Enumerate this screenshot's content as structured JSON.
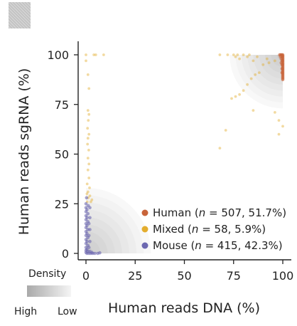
{
  "chart_data": {
    "type": "scatter",
    "xlabel": "Human reads DNA (%)",
    "ylabel": "Human reads sgRNA (%)",
    "xlim": [
      -3,
      103
    ],
    "ylim": [
      -3,
      103
    ],
    "x_ticks": [
      "0",
      "25",
      "50",
      "75",
      "100"
    ],
    "x_tick_values": [
      0,
      25,
      50,
      75,
      100
    ],
    "y_ticks": [
      "0",
      "25",
      "50",
      "75",
      "100"
    ],
    "y_tick_values": [
      0,
      25,
      50,
      75,
      100
    ],
    "grid": false,
    "legend_position": "bottom-right",
    "series": [
      {
        "name": "Human",
        "n": "507",
        "pct": "51.7%",
        "color": "#c8643a",
        "points": [
          [
            100,
            100
          ],
          [
            100,
            99.5
          ],
          [
            100,
            99
          ],
          [
            100,
            98.5
          ],
          [
            100,
            98
          ],
          [
            100,
            97.5
          ],
          [
            100,
            97
          ],
          [
            100,
            96.5
          ],
          [
            100,
            96
          ],
          [
            100,
            95.5
          ],
          [
            100,
            95
          ],
          [
            100,
            94.5
          ],
          [
            100,
            94
          ],
          [
            100,
            93.5
          ],
          [
            100,
            93
          ],
          [
            100,
            92.5
          ],
          [
            100,
            92
          ],
          [
            100,
            91.5
          ],
          [
            100,
            91
          ],
          [
            100,
            90.5
          ],
          [
            100,
            90
          ],
          [
            100,
            89.5
          ],
          [
            100,
            89
          ],
          [
            100,
            88.5
          ],
          [
            100,
            88
          ],
          [
            100,
            87.5
          ],
          [
            99.6,
            100
          ],
          [
            99.6,
            99
          ],
          [
            99.6,
            97
          ],
          [
            99.6,
            95
          ],
          [
            99.6,
            93
          ],
          [
            99.6,
            91
          ],
          [
            99.2,
            100
          ],
          [
            99.2,
            98
          ],
          [
            99.2,
            96
          ],
          [
            98.8,
            100
          ],
          [
            98.8,
            99
          ],
          [
            98.4,
            100
          ]
        ]
      },
      {
        "name": "Mixed",
        "n": "58",
        "pct": "5.9%",
        "color": "#e3ad2e",
        "points": [
          [
            0,
            100
          ],
          [
            0,
            97
          ],
          [
            1,
            90
          ],
          [
            1.5,
            83
          ],
          [
            1,
            72
          ],
          [
            1.5,
            70
          ],
          [
            1.2,
            67
          ],
          [
            0.8,
            63
          ],
          [
            1.5,
            60
          ],
          [
            1,
            58
          ],
          [
            0.8,
            55
          ],
          [
            1.4,
            52
          ],
          [
            1,
            48
          ],
          [
            1.5,
            45
          ],
          [
            1,
            42
          ],
          [
            1.5,
            38
          ],
          [
            0.6,
            35
          ],
          [
            1.8,
            33
          ],
          [
            1,
            31
          ],
          [
            0.5,
            30
          ],
          [
            2,
            29
          ],
          [
            1.2,
            28
          ],
          [
            3,
            27
          ],
          [
            0.6,
            26
          ],
          [
            2.5,
            26
          ],
          [
            4,
            100
          ],
          [
            5,
            100
          ],
          [
            9,
            100
          ],
          [
            71,
            62
          ],
          [
            74,
            78
          ],
          [
            76,
            79
          ],
          [
            78,
            80
          ],
          [
            80,
            82
          ],
          [
            82,
            85
          ],
          [
            84,
            88
          ],
          [
            86,
            90
          ],
          [
            88,
            91
          ],
          [
            68,
            100
          ],
          [
            72,
            100
          ],
          [
            75,
            100
          ],
          [
            76,
            99
          ],
          [
            77,
            100
          ],
          [
            78,
            98
          ],
          [
            80,
            100
          ],
          [
            82,
            99
          ],
          [
            83,
            100
          ],
          [
            85,
            97
          ],
          [
            87,
            99
          ],
          [
            90,
            95
          ],
          [
            93,
            96
          ],
          [
            96,
            97
          ],
          [
            96,
            71
          ],
          [
            98,
            67
          ],
          [
            100,
            64
          ],
          [
            98,
            60
          ],
          [
            85,
            72
          ],
          [
            68,
            53
          ],
          [
            92,
            98
          ]
        ]
      },
      {
        "name": "Mouse",
        "n": "415",
        "pct": "42.3%",
        "color": "#6c68b0",
        "points": [
          [
            0,
            25
          ],
          [
            0,
            23
          ],
          [
            0.5,
            22
          ],
          [
            0,
            21
          ],
          [
            1,
            20
          ],
          [
            0,
            19
          ],
          [
            0.5,
            18
          ],
          [
            0,
            17
          ],
          [
            1,
            16
          ],
          [
            0,
            15
          ],
          [
            0.5,
            14
          ],
          [
            0,
            13
          ],
          [
            1,
            12
          ],
          [
            0,
            11
          ],
          [
            0.5,
            10
          ],
          [
            0,
            9
          ],
          [
            1,
            8
          ],
          [
            0,
            7
          ],
          [
            0.5,
            6
          ],
          [
            0,
            5
          ],
          [
            1,
            4
          ],
          [
            0,
            3
          ],
          [
            0.5,
            2
          ],
          [
            0,
            1.5
          ],
          [
            1,
            1
          ],
          [
            0,
            0.5
          ],
          [
            0.5,
            0
          ],
          [
            1.5,
            0
          ],
          [
            2.5,
            0
          ],
          [
            3.5,
            0
          ],
          [
            4.5,
            0
          ],
          [
            6,
            0
          ],
          [
            7,
            0.3
          ],
          [
            2,
            1
          ],
          [
            3,
            0.5
          ],
          [
            1.5,
            3
          ],
          [
            2,
            6
          ],
          [
            1.5,
            9
          ],
          [
            2,
            12
          ],
          [
            1.5,
            15
          ],
          [
            2,
            18
          ],
          [
            1.2,
            24
          ],
          [
            2,
            23
          ],
          [
            0.3,
            28
          ]
        ]
      }
    ],
    "density_regions": [
      {
        "cx": 100,
        "cy": 100,
        "r": 27,
        "quadrant": "top-right"
      },
      {
        "cx": 0,
        "cy": 0,
        "r": 33,
        "quadrant": "bottom-left"
      }
    ],
    "density_legend": {
      "title": "Density",
      "high_label": "High",
      "low_label": "Low"
    }
  }
}
